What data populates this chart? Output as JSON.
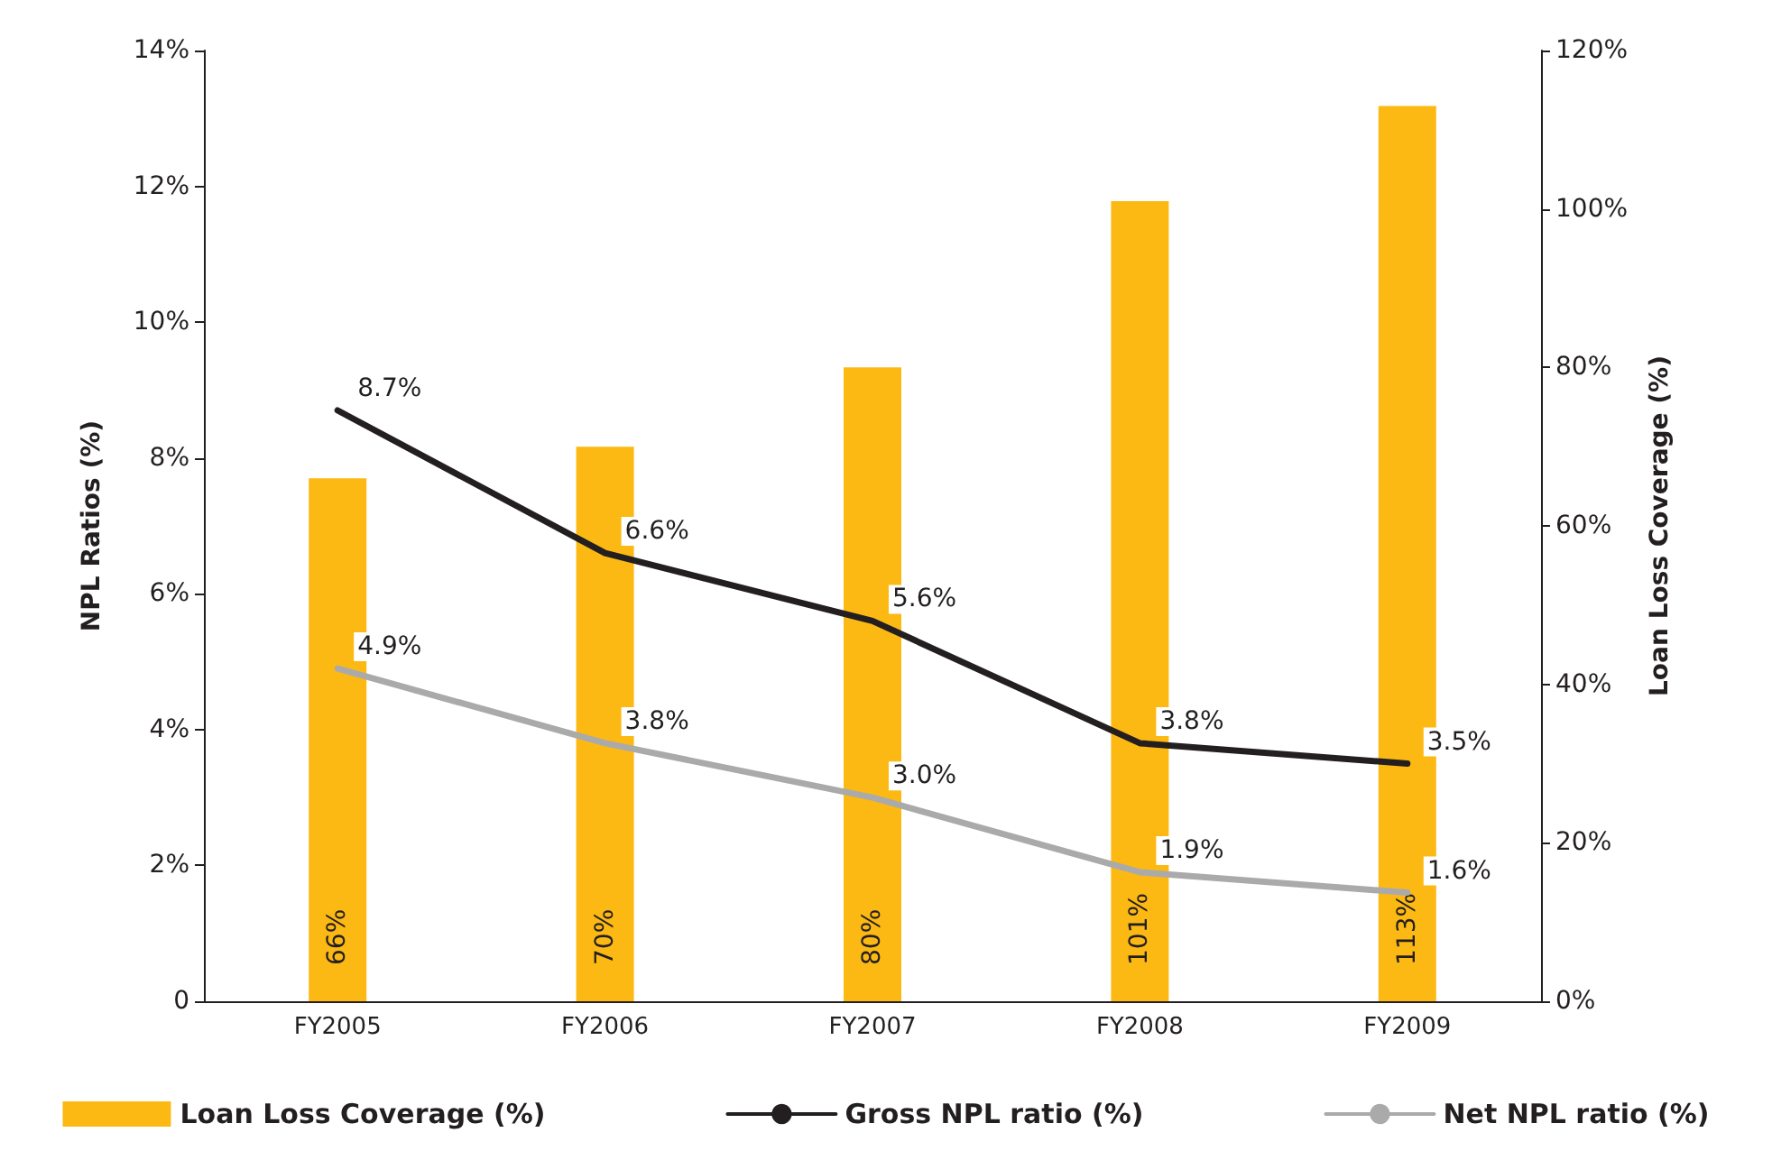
{
  "chart_data": {
    "type": "bar",
    "categories": [
      "FY2005",
      "FY2006",
      "FY2007",
      "FY2008",
      "FY2009"
    ],
    "ylabel": "NPL Ratios (%)",
    "y2label": "Loan Loss Coverage (%)",
    "series": [
      {
        "name": "Loan Loss Coverage (%)",
        "axis": "y2",
        "color": "#fdb913",
        "values": [
          66,
          70,
          80,
          101,
          113
        ],
        "value_labels": [
          "66%",
          "70%",
          "80%",
          "101%",
          "113%"
        ]
      },
      {
        "name": "Gross NPL ratio (%)",
        "type": "line",
        "axis": "y",
        "color": "#231f20",
        "values": [
          8.7,
          6.6,
          5.6,
          3.8,
          3.5
        ],
        "value_labels": [
          "8.7%",
          "6.6%",
          "5.6%",
          "3.8%",
          "3.5%"
        ]
      },
      {
        "name": "Net NPL ratio (%)",
        "type": "line",
        "axis": "y",
        "color": "#aaaaaa",
        "values": [
          4.9,
          3.8,
          3.0,
          1.9,
          1.6
        ],
        "value_labels": [
          "4.9%",
          "3.8%",
          "3.0%",
          "1.9%",
          "1.6%"
        ]
      }
    ],
    "ylim": [
      0,
      14
    ],
    "yticks": [
      {
        "value": 0,
        "label": "0"
      },
      {
        "value": 2,
        "label": "2%"
      },
      {
        "value": 4,
        "label": "4%"
      },
      {
        "value": 6,
        "label": "6%"
      },
      {
        "value": 8,
        "label": "8%"
      },
      {
        "value": 10,
        "label": "10%"
      },
      {
        "value": 12,
        "label": "12%"
      },
      {
        "value": 14,
        "label": "14%"
      }
    ],
    "y2lim": [
      0,
      120
    ],
    "y2ticks": [
      {
        "value": 0,
        "label": "0%"
      },
      {
        "value": 20,
        "label": "20%"
      },
      {
        "value": 40,
        "label": "40%"
      },
      {
        "value": 60,
        "label": "60%"
      },
      {
        "value": 80,
        "label": "80%"
      },
      {
        "value": 100,
        "label": "100%"
      },
      {
        "value": 120,
        "label": "120%"
      }
    ],
    "grid": false,
    "legend": "bottom",
    "marker": "none",
    "line_style": "solid"
  }
}
